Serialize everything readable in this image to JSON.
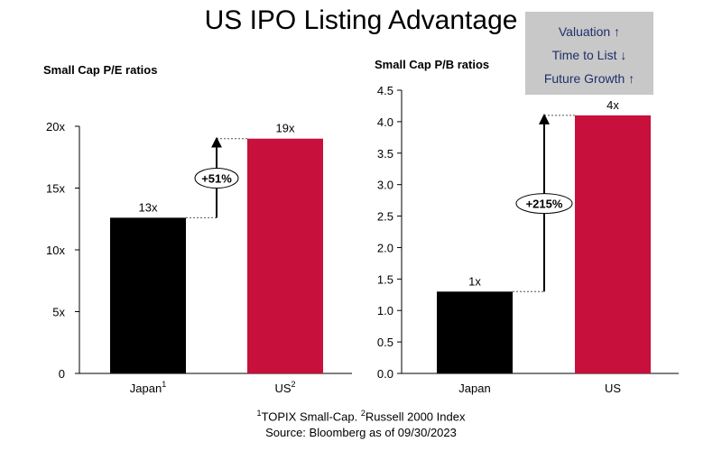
{
  "title": "US IPO Listing Advantage",
  "legend": {
    "items": [
      {
        "label": "Valuation",
        "arrow": "↑"
      },
      {
        "label": "Time to List",
        "arrow": "↓"
      },
      {
        "label": "Future Growth",
        "arrow": "↑"
      }
    ]
  },
  "footnote": {
    "line1_sup1": "1",
    "line1_text1": "TOPIX Small-Cap. ",
    "line1_sup2": "2",
    "line1_text2": "Russell 2000 Index",
    "line2": "Source: Bloomberg as of 09/30/2023"
  },
  "colors": {
    "japan": "#000000",
    "us": "#c8103c",
    "legend_bg": "#c8c8c8",
    "legend_text": "#1f2f6b"
  },
  "chart_data": [
    {
      "type": "bar",
      "title": "Small Cap P/E ratios",
      "categories": [
        "Japan",
        "US"
      ],
      "category_sups": [
        "1",
        "2"
      ],
      "values": [
        12.6,
        19.0
      ],
      "data_labels": [
        "13x",
        "19x"
      ],
      "ylim": [
        0,
        20
      ],
      "yticks": [
        0,
        5,
        10,
        15,
        20
      ],
      "ytick_labels": [
        "0",
        "5x",
        "10x",
        "15x",
        "20x"
      ],
      "annotation": "+51%"
    },
    {
      "type": "bar",
      "title": "Small Cap P/B ratios",
      "categories": [
        "Japan",
        "US"
      ],
      "category_sups": [
        "",
        ""
      ],
      "values": [
        1.3,
        4.1
      ],
      "data_labels": [
        "1x",
        "4x"
      ],
      "ylim": [
        0,
        4.5
      ],
      "yticks": [
        0,
        0.5,
        1.0,
        1.5,
        2.0,
        2.5,
        3.0,
        3.5,
        4.0,
        4.5
      ],
      "ytick_labels": [
        "0.0",
        "0.5",
        "1.0",
        "1.5",
        "2.0",
        "2.5",
        "3.0",
        "3.5",
        "4.0",
        "4.5"
      ],
      "annotation": "+215%"
    }
  ]
}
